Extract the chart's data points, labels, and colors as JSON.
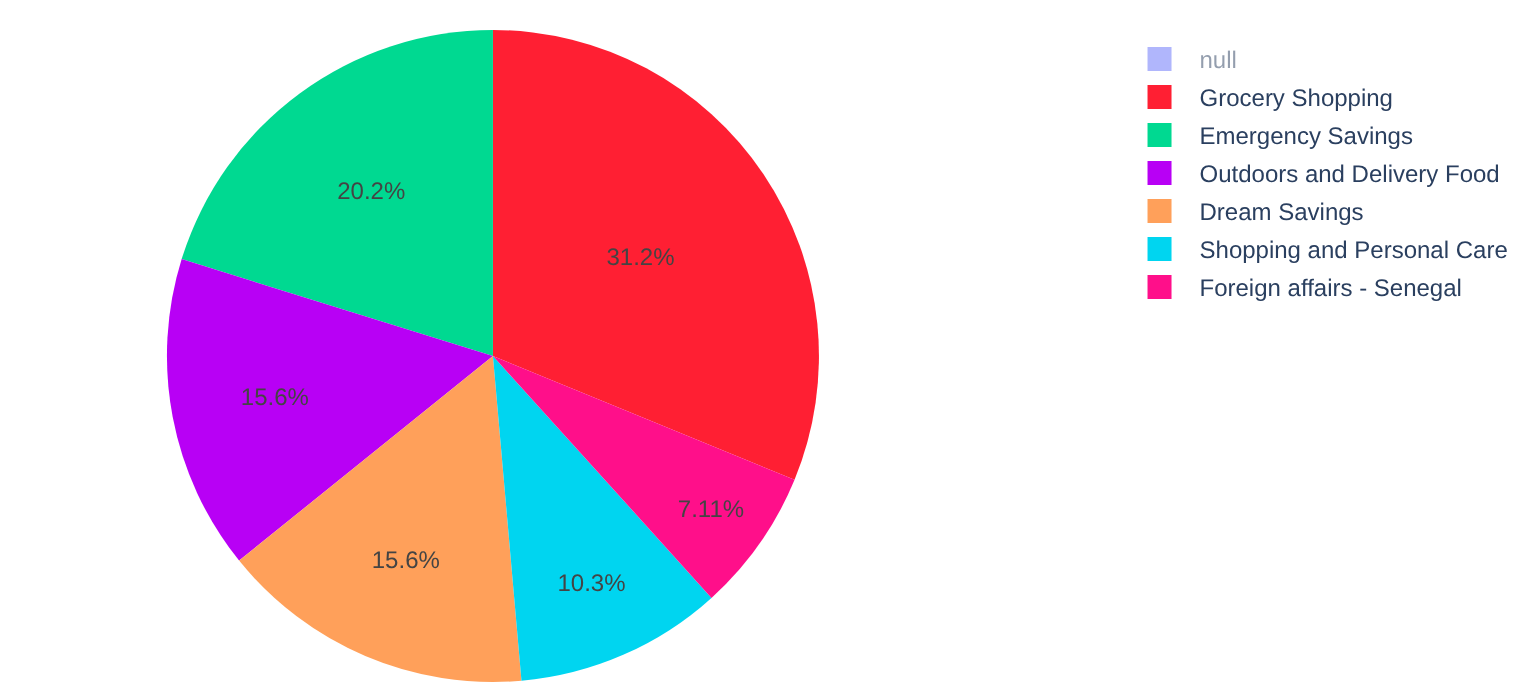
{
  "chart_data": {
    "type": "pie",
    "categories": [
      "null",
      "Grocery Shopping",
      "Emergency Savings",
      "Outdoors and Delivery Food",
      "Dream Savings",
      "Shopping and Personal Care",
      "Foreign affairs - Senegal"
    ],
    "values": [
      0,
      31.2,
      20.2,
      15.6,
      15.6,
      10.3,
      7.11
    ],
    "colors": [
      "#636efa",
      "#ff1f33",
      "#00d991",
      "#b800f5",
      "#ffa05a",
      "#00d5f0",
      "#ff0f8a"
    ],
    "value_labels": [
      null,
      "31.2%",
      "20.2%",
      "15.6%",
      "15.6%",
      "10.3%",
      "7.11%"
    ],
    "legend": "top right"
  }
}
